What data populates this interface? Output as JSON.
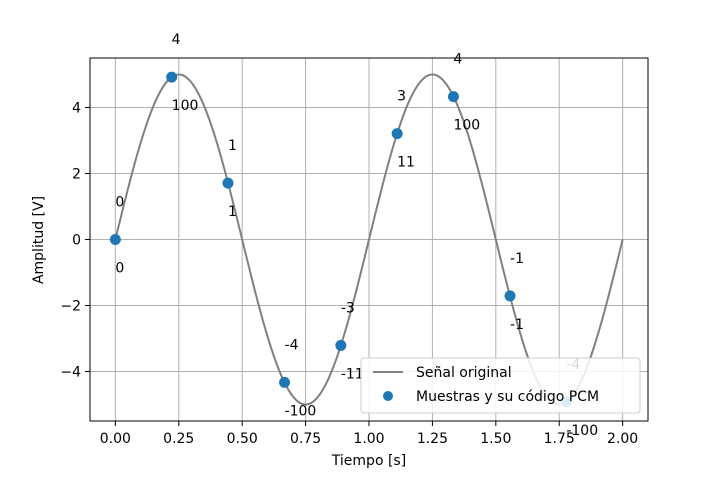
{
  "chart_data": {
    "type": "line",
    "xlabel": "Tiempo [s]",
    "ylabel": "Amplitud [V]",
    "xlim": [
      -0.1,
      2.1
    ],
    "ylim": [
      -5.5,
      5.5
    ],
    "xticks": [
      "0.00",
      "0.25",
      "0.50",
      "0.75",
      "1.00",
      "1.25",
      "1.50",
      "1.75",
      "2.00"
    ],
    "yticks": [
      "−4",
      "−2",
      "0",
      "2",
      "4"
    ],
    "grid": true,
    "legend_position": "lower-right",
    "colors": {
      "signal": "#808080",
      "samples": "#1f77b4"
    },
    "series": [
      {
        "name": "Señal original",
        "kind": "line",
        "function": "5*sin(2*pi*t)",
        "x_range": [
          0,
          2.0
        ],
        "amplitude": 5,
        "frequency": 1
      },
      {
        "name": "Muestras y su código PCM",
        "kind": "scatter",
        "x": [
          0.0,
          0.222,
          0.444,
          0.667,
          0.889,
          1.111,
          1.333,
          1.556,
          1.778
        ],
        "y": [
          0.0,
          4.92,
          1.71,
          -4.33,
          -3.21,
          3.21,
          4.33,
          -1.71,
          -4.92
        ],
        "quantized": [
          "0",
          "4",
          "1",
          "-4",
          "-3",
          "3",
          "4",
          "-1",
          "-4"
        ],
        "codes": [
          "0",
          "100",
          "1",
          "-100",
          "-11",
          "11",
          "100",
          "-1",
          "-100"
        ]
      }
    ]
  }
}
